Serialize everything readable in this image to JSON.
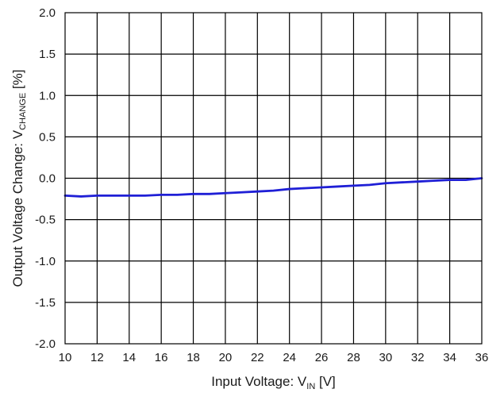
{
  "chart_data": {
    "type": "line",
    "title": "",
    "xlabel": {
      "main": "Input Voltage: V",
      "sub": "IN",
      "unit": " [V]"
    },
    "ylabel": {
      "main": "Output Voltage Change: V",
      "sub": "CHANGE",
      "unit": " [%]"
    },
    "xlim": [
      10,
      36
    ],
    "ylim": [
      -2.0,
      2.0
    ],
    "x_ticks": [
      "10",
      "12",
      "14",
      "16",
      "18",
      "20",
      "22",
      "24",
      "26",
      "28",
      "30",
      "32",
      "34",
      "36"
    ],
    "y_ticks": [
      "2.0",
      "1.5",
      "1.0",
      "0.5",
      "0.0",
      "-0.5",
      "-1.0",
      "-1.5",
      "-2.0"
    ],
    "x_grid_step": 2,
    "y_grid_step": 0.5,
    "grid": true,
    "series": [
      {
        "color": "#1f1fd6",
        "x": [
          10,
          11,
          12,
          13,
          14,
          15,
          16,
          17,
          18,
          19,
          20,
          21,
          22,
          23,
          24,
          25,
          26,
          27,
          28,
          29,
          30,
          31,
          32,
          33,
          34,
          35,
          36
        ],
        "y": [
          -0.21,
          -0.22,
          -0.21,
          -0.21,
          -0.21,
          -0.21,
          -0.2,
          -0.2,
          -0.19,
          -0.19,
          -0.18,
          -0.17,
          -0.16,
          -0.15,
          -0.13,
          -0.12,
          -0.11,
          -0.1,
          -0.09,
          -0.08,
          -0.06,
          -0.05,
          -0.04,
          -0.03,
          -0.02,
          -0.02,
          0.0
        ]
      }
    ]
  }
}
